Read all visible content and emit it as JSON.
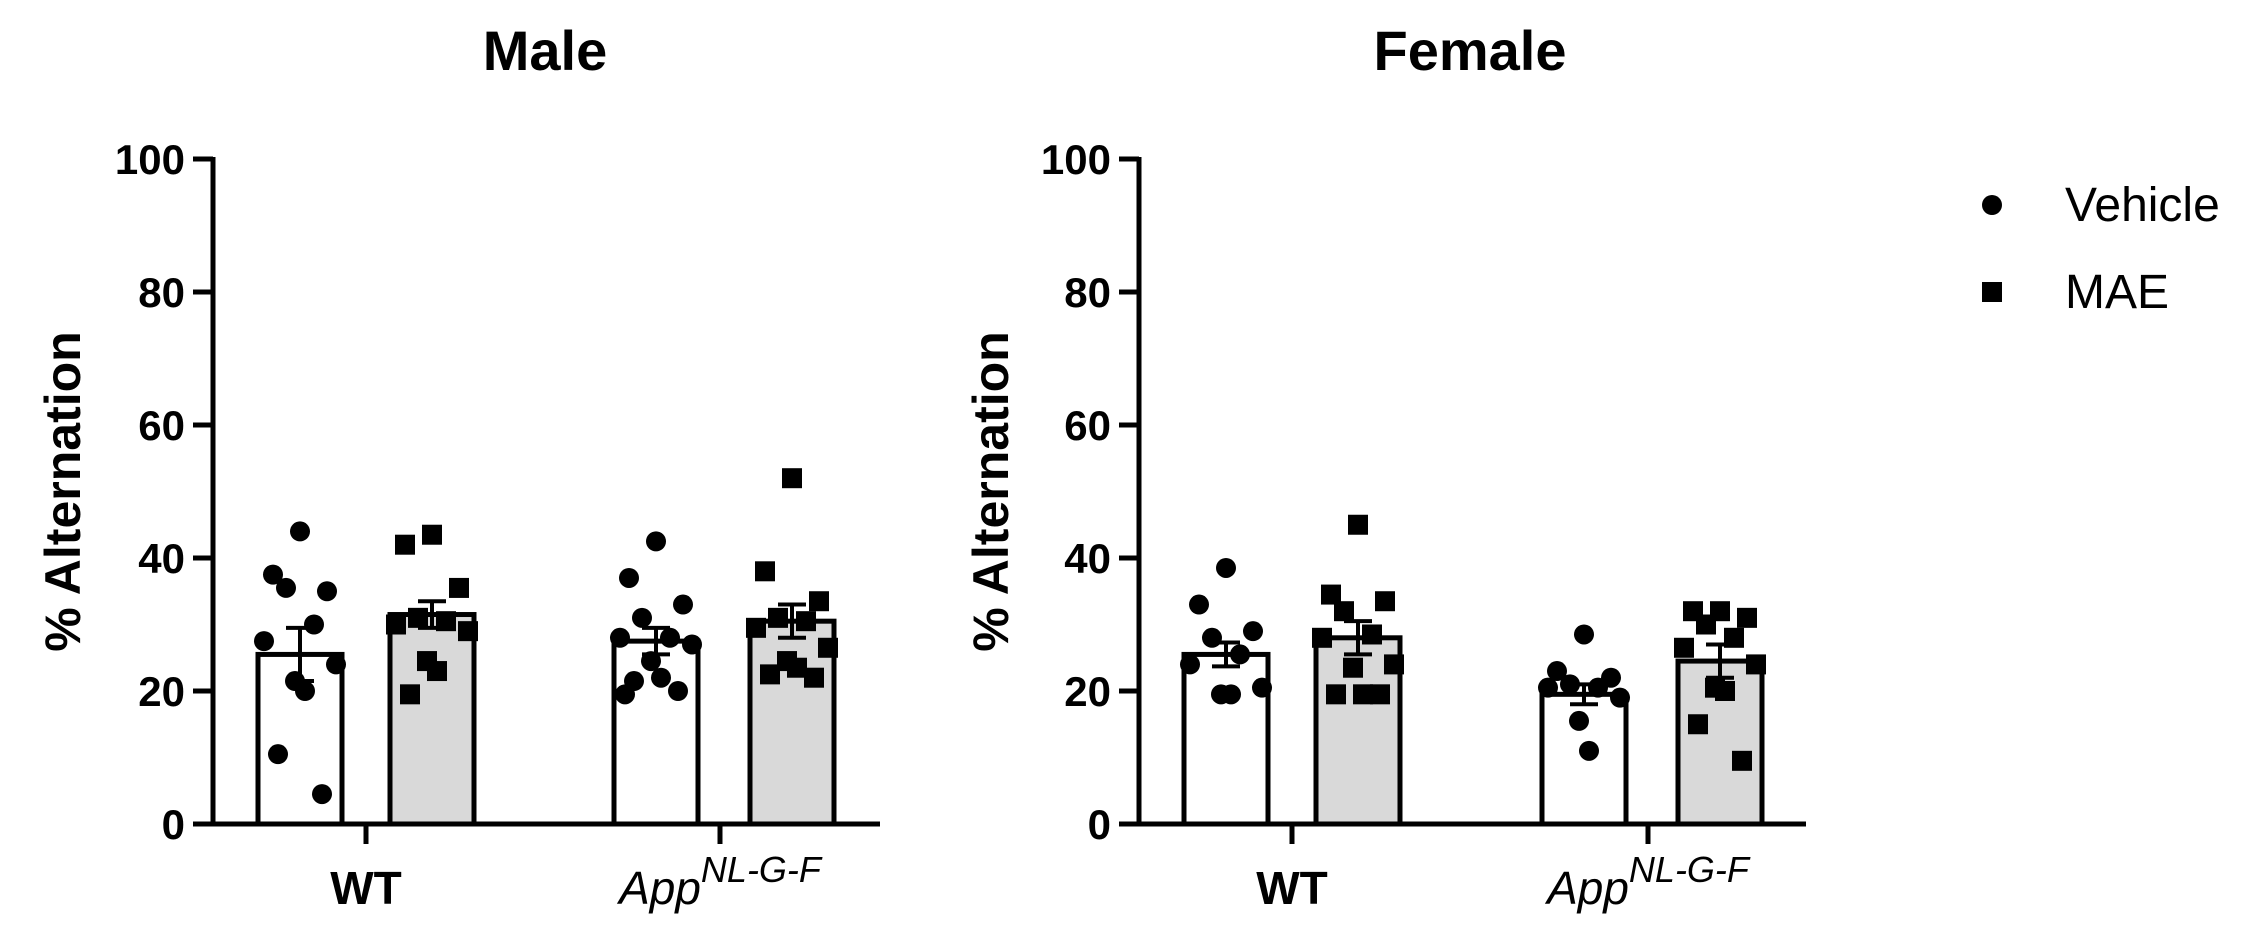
{
  "chart_data": [
    {
      "type": "bar",
      "title": "Male",
      "ylabel": "% Alternation",
      "xlabel": "",
      "ylim": [
        0,
        100
      ],
      "yticks": [
        "0",
        "20",
        "40",
        "60",
        "80",
        "100"
      ],
      "categories": [
        {
          "label": "WT",
          "italic": false
        },
        {
          "label": "App",
          "sup": "NL-G-F",
          "italic": true
        }
      ],
      "series": [
        {
          "name": "Vehicle",
          "fill": "#ffffff",
          "marker": "circle",
          "values": [
            25.5,
            27.5
          ],
          "sem": [
            4.0,
            2.0
          ],
          "points": [
            [
              44,
              37.5,
              35,
              35.5,
              30,
              27.5,
              24,
              21.5,
              20,
              10.5,
              4.5
            ],
            [
              42.5,
              37,
              33,
              31,
              28,
              28,
              27,
              24.5,
              22,
              21.5,
              20,
              19.5
            ]
          ]
        },
        {
          "name": "MAE",
          "fill": "#d9d9d9",
          "marker": "square",
          "values": [
            31.5,
            30.5
          ],
          "sem": [
            2.0,
            2.5
          ],
          "points": [
            [
              43.5,
              42,
              35.5,
              31,
              30.5,
              30,
              29,
              24.5,
              23,
              19.5
            ],
            [
              52,
              38,
              33.5,
              31,
              30.5,
              29.5,
              26.5,
              24.5,
              23.5,
              22.5,
              22
            ]
          ]
        }
      ]
    },
    {
      "type": "bar",
      "title": "Female",
      "ylabel": "% Alternation",
      "xlabel": "",
      "ylim": [
        0,
        100
      ],
      "yticks": [
        "0",
        "20",
        "40",
        "60",
        "80",
        "100"
      ],
      "categories": [
        {
          "label": "WT",
          "italic": false
        },
        {
          "label": "App",
          "sup": "NL-G-F",
          "italic": true
        }
      ],
      "series": [
        {
          "name": "Vehicle",
          "fill": "#ffffff",
          "marker": "circle",
          "values": [
            25.5,
            19.5
          ],
          "sem": [
            1.8,
            1.5
          ],
          "points": [
            [
              38.5,
              33,
              29,
              28,
              25.5,
              24,
              20.5,
              19.5,
              19.5
            ],
            [
              28.5,
              23,
              22,
              21,
              20.5,
              20.5,
              19,
              15.5,
              11
            ]
          ]
        },
        {
          "name": "MAE",
          "fill": "#d9d9d9",
          "marker": "square",
          "values": [
            28.0,
            24.5
          ],
          "sem": [
            2.5,
            2.5
          ],
          "points": [
            [
              45,
              34.5,
              33.5,
              32,
              28.5,
              28,
              24,
              23.5,
              19.5,
              19.5,
              19.5
            ],
            [
              32,
              32,
              31,
              30,
              28,
              26.5,
              24,
              20.5,
              20,
              15,
              9.5
            ]
          ]
        }
      ]
    }
  ],
  "legend": {
    "position": "right",
    "items": [
      {
        "label": "Vehicle",
        "marker": "circle"
      },
      {
        "label": "MAE",
        "marker": "square"
      }
    ]
  }
}
